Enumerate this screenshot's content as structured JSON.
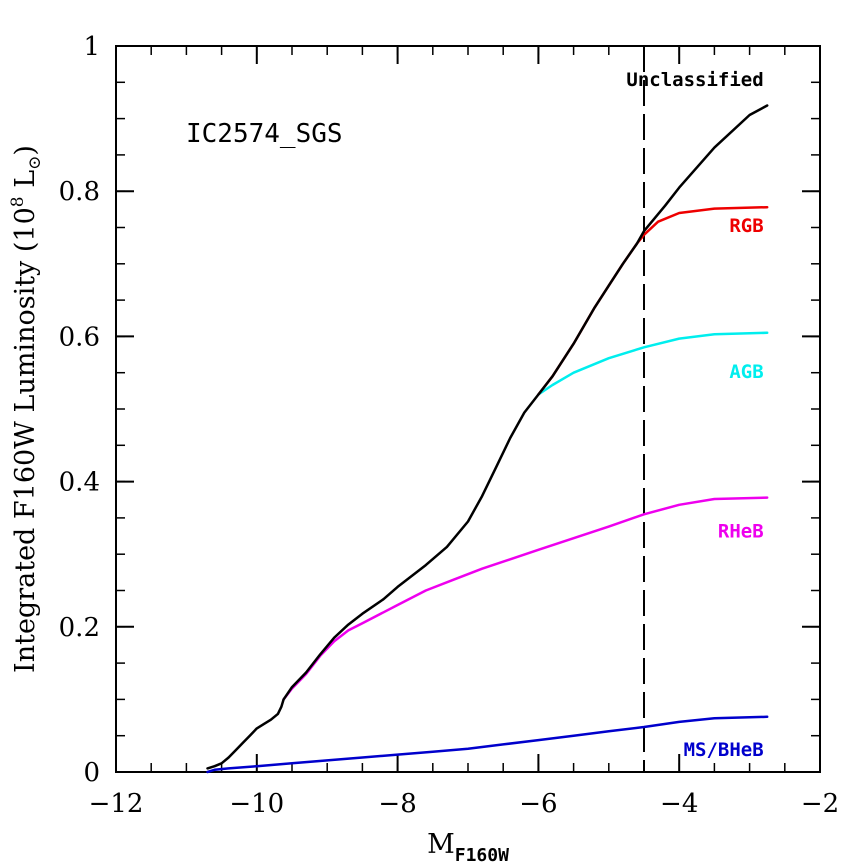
{
  "chart_data": {
    "type": "line",
    "annotation": "IC2574_SGS",
    "ylabel_main": "Integrated F160W Luminosity (10",
    "ylabel_exp": "8",
    "ylabel_unit": "L",
    "xlabel_main": "M",
    "xlabel_sub": "F160W",
    "xlim": [
      -12,
      -2
    ],
    "ylim": [
      0,
      1
    ],
    "x_ticks": [
      -12,
      -10,
      -8,
      -6,
      -4,
      -2
    ],
    "x_tick_labels": [
      "−12",
      "−10",
      "−8",
      "−6",
      "−4",
      "−2"
    ],
    "y_ticks": [
      0,
      0.2,
      0.4,
      0.6,
      0.8,
      1
    ],
    "y_tick_labels": [
      "0",
      "0.2",
      "0.4",
      "0.6",
      "0.8",
      "1"
    ],
    "vline_x": -4.5,
    "series": [
      {
        "name": "MS/BHeB",
        "color": "#0000cc",
        "x": [
          -10.7,
          -10.6,
          -10.4,
          -10.0,
          -9.5,
          -9.0,
          -8.5,
          -8.0,
          -7.5,
          -7.0,
          -6.5,
          -6.0,
          -5.5,
          -5.0,
          -4.5,
          -4.0,
          -3.5,
          -2.75
        ],
        "y": [
          0.0,
          0.003,
          0.005,
          0.008,
          0.012,
          0.016,
          0.02,
          0.024,
          0.028,
          0.032,
          0.038,
          0.044,
          0.05,
          0.056,
          0.062,
          0.069,
          0.074,
          0.076
        ]
      },
      {
        "name": "RHeB",
        "color": "#ee00ee",
        "x": [
          -9.62,
          -9.5,
          -9.3,
          -9.1,
          -8.9,
          -8.7,
          -8.5,
          -8.2,
          -8.0,
          -7.6,
          -7.2,
          -6.8,
          -6.4,
          -6.0,
          -5.5,
          -5.0,
          -4.5,
          -4.0,
          -3.5,
          -2.75
        ],
        "y": [
          0.1,
          0.115,
          0.135,
          0.16,
          0.18,
          0.195,
          0.205,
          0.22,
          0.23,
          0.25,
          0.265,
          0.28,
          0.293,
          0.306,
          0.322,
          0.338,
          0.355,
          0.368,
          0.376,
          0.378
        ]
      },
      {
        "name": "AGB",
        "color": "#00eeee",
        "x": [
          -6.0,
          -5.8,
          -5.5,
          -5.0,
          -4.5,
          -4.0,
          -3.5,
          -2.75
        ],
        "y": [
          0.52,
          0.533,
          0.55,
          0.57,
          0.585,
          0.597,
          0.603,
          0.605
        ]
      },
      {
        "name": "RGB",
        "color": "#ee0000",
        "x": [
          -6.0,
          -5.8,
          -5.5,
          -5.2,
          -5.0,
          -4.8,
          -4.6,
          -4.5,
          -4.3,
          -4.0,
          -3.5,
          -2.75
        ],
        "y": [
          0.52,
          0.545,
          0.59,
          0.64,
          0.67,
          0.7,
          0.728,
          0.74,
          0.758,
          0.77,
          0.776,
          0.778
        ]
      },
      {
        "name": "Unclassified",
        "color": "#000000",
        "x": [
          -10.7,
          -10.6,
          -10.5,
          -10.4,
          -10.3,
          -10.2,
          -10.1,
          -10.0,
          -9.9,
          -9.8,
          -9.7,
          -9.65,
          -9.62,
          -9.5,
          -9.3,
          -9.1,
          -8.9,
          -8.7,
          -8.5,
          -8.2,
          -8.0,
          -7.6,
          -7.3,
          -7.0,
          -6.8,
          -6.6,
          -6.4,
          -6.2,
          -6.0,
          -5.8,
          -5.5,
          -5.2,
          -5.0,
          -4.8,
          -4.6,
          -4.5,
          -4.2,
          -4.0,
          -3.5,
          -3.0,
          -2.75
        ],
        "y": [
          0.005,
          0.008,
          0.012,
          0.02,
          0.03,
          0.04,
          0.05,
          0.06,
          0.066,
          0.072,
          0.08,
          0.09,
          0.1,
          0.117,
          0.137,
          0.162,
          0.185,
          0.203,
          0.218,
          0.238,
          0.255,
          0.285,
          0.31,
          0.345,
          0.38,
          0.42,
          0.46,
          0.495,
          0.52,
          0.545,
          0.59,
          0.64,
          0.67,
          0.7,
          0.728,
          0.745,
          0.78,
          0.805,
          0.86,
          0.905,
          0.918
        ]
      }
    ],
    "series_labels": [
      {
        "text": "Unclassified",
        "color": "#000000",
        "x": -2.8,
        "y": 0.945
      },
      {
        "text": "RGB",
        "color": "#ee0000",
        "x": -2.8,
        "y": 0.744
      },
      {
        "text": "AGB",
        "color": "#00eeee",
        "x": -2.8,
        "y": 0.543
      },
      {
        "text": "RHeB",
        "color": "#ee00ee",
        "x": -2.8,
        "y": 0.323
      },
      {
        "text": "MS/BHeB",
        "color": "#0000cc",
        "x": -2.8,
        "y": 0.022
      }
    ]
  }
}
